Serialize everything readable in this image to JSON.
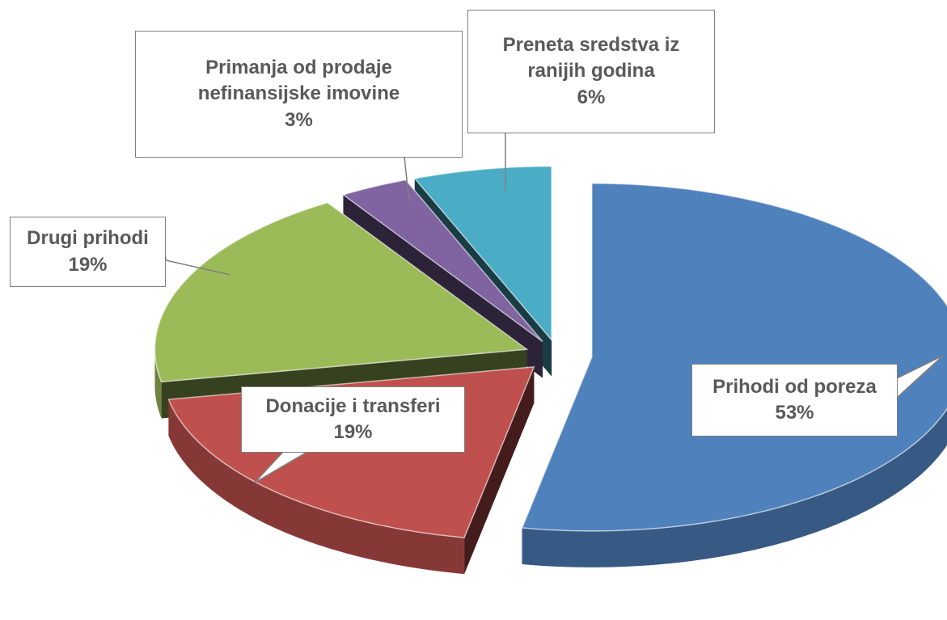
{
  "chart_data": {
    "type": "pie",
    "categories": [
      "Prihodi od poreza",
      "Donacije i transferi",
      "Drugi prihodi",
      "Primanja od prodaje nefinansijske imovine",
      "Preneta sredstva iz ranijih godina"
    ],
    "values": [
      53,
      19,
      19,
      3,
      6
    ],
    "value_labels": [
      "53%",
      "19%",
      "19%",
      "3%",
      "6%"
    ],
    "colors": [
      "#4f81bd",
      "#c0504d",
      "#9bbb59",
      "#8064a2",
      "#4bacc6"
    ]
  }
}
